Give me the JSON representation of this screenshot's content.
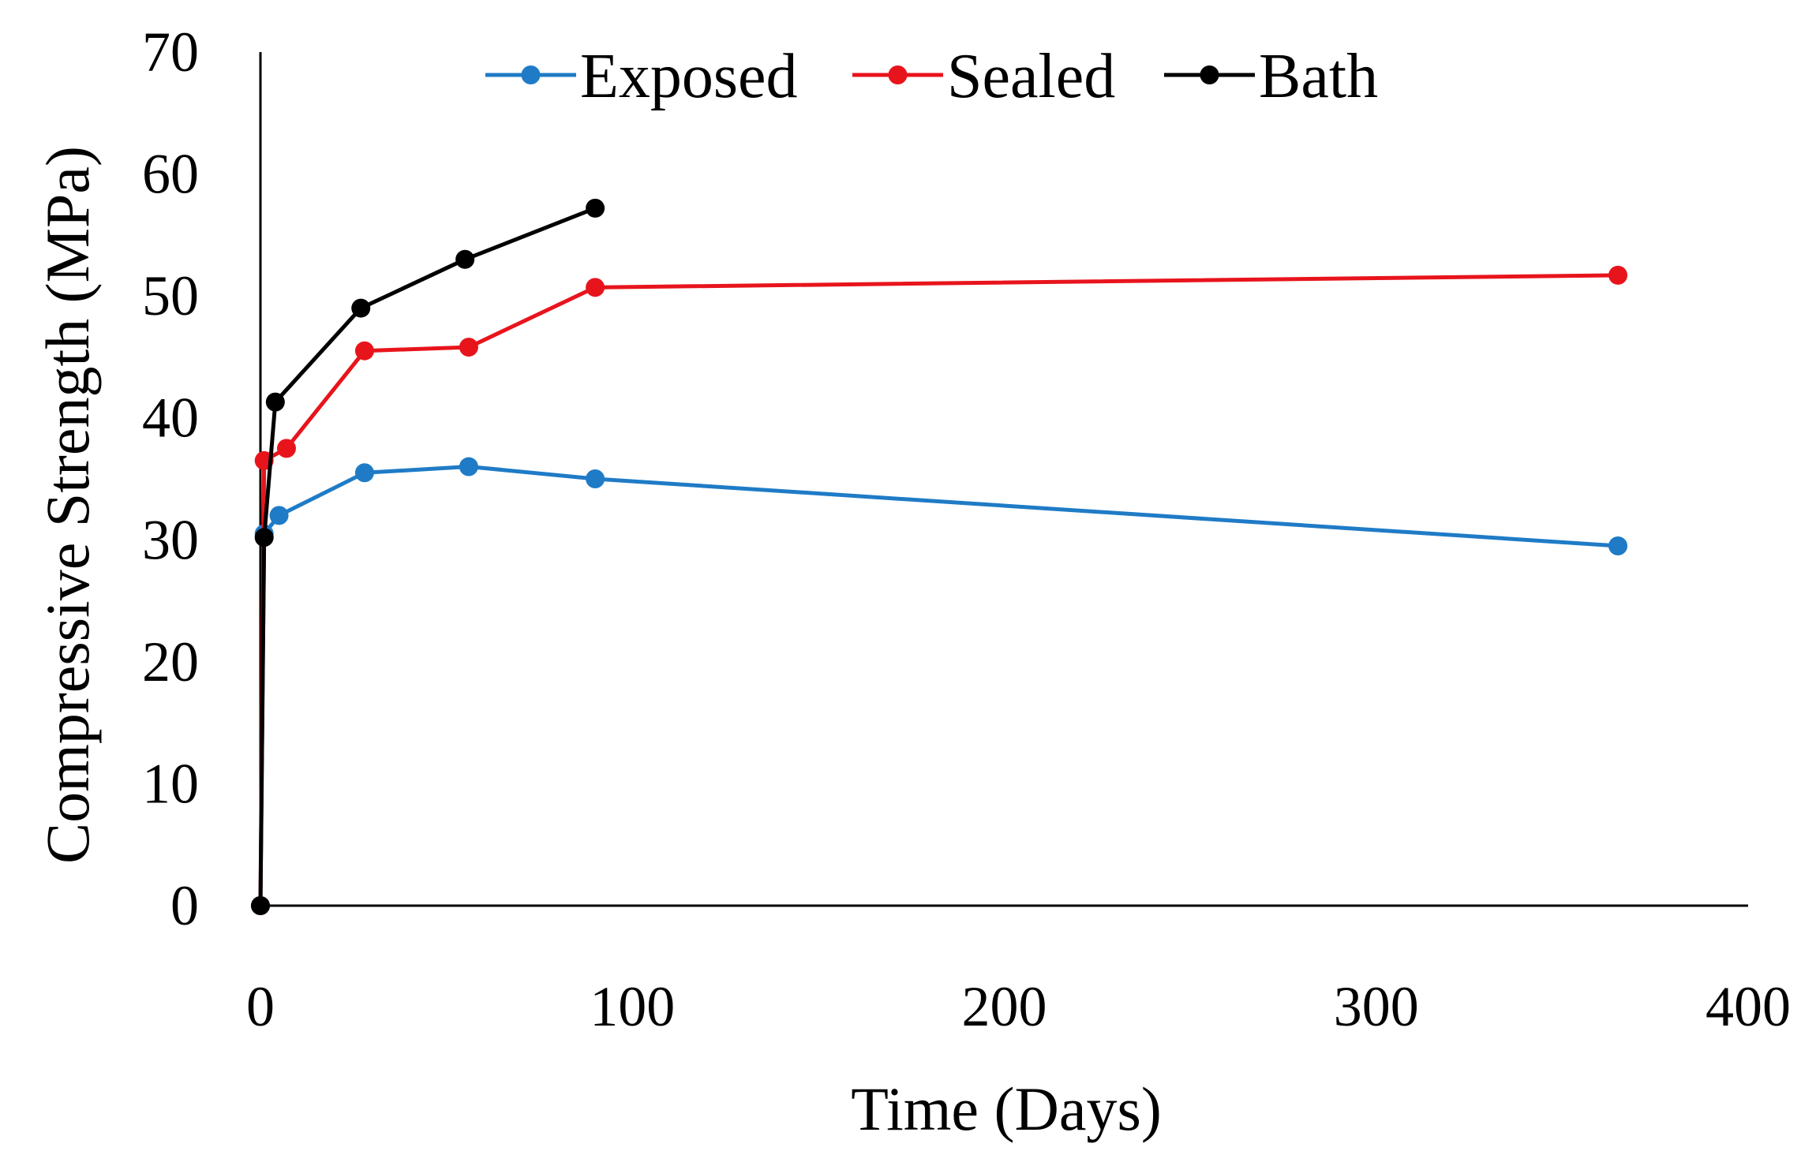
{
  "chart_data": {
    "type": "line",
    "title": "",
    "xlabel": "Time (Days)",
    "ylabel": "Compressive Strength (MPa)",
    "xlim": [
      0,
      400
    ],
    "ylim": [
      0,
      70
    ],
    "xticks": [
      0,
      100,
      200,
      300,
      400
    ],
    "yticks": [
      0,
      10,
      20,
      30,
      40,
      50,
      60,
      70
    ],
    "xtick_labels": [
      "0",
      "100",
      "200",
      "300",
      "400"
    ],
    "ytick_labels": [
      "0",
      "10",
      "20",
      "30",
      "40",
      "50",
      "60",
      "70"
    ],
    "grid": false,
    "legend_position": "top",
    "series": [
      {
        "name": "Exposed",
        "color": "#1F7BC6",
        "x": [
          0,
          1,
          5,
          28,
          56,
          90,
          365
        ],
        "y": [
          0,
          30.5,
          32.0,
          35.5,
          36.0,
          35.0,
          29.5
        ]
      },
      {
        "name": "Sealed",
        "color": "#E8141C",
        "x": [
          0,
          1,
          7,
          28,
          56,
          90,
          365
        ],
        "y": [
          0,
          36.5,
          37.5,
          45.5,
          45.8,
          50.7,
          51.7
        ]
      },
      {
        "name": "Bath",
        "color": "#000000",
        "x": [
          0,
          1,
          4,
          27,
          55,
          90
        ],
        "y": [
          0,
          30.2,
          41.3,
          49.0,
          53.0,
          57.2
        ]
      }
    ]
  }
}
